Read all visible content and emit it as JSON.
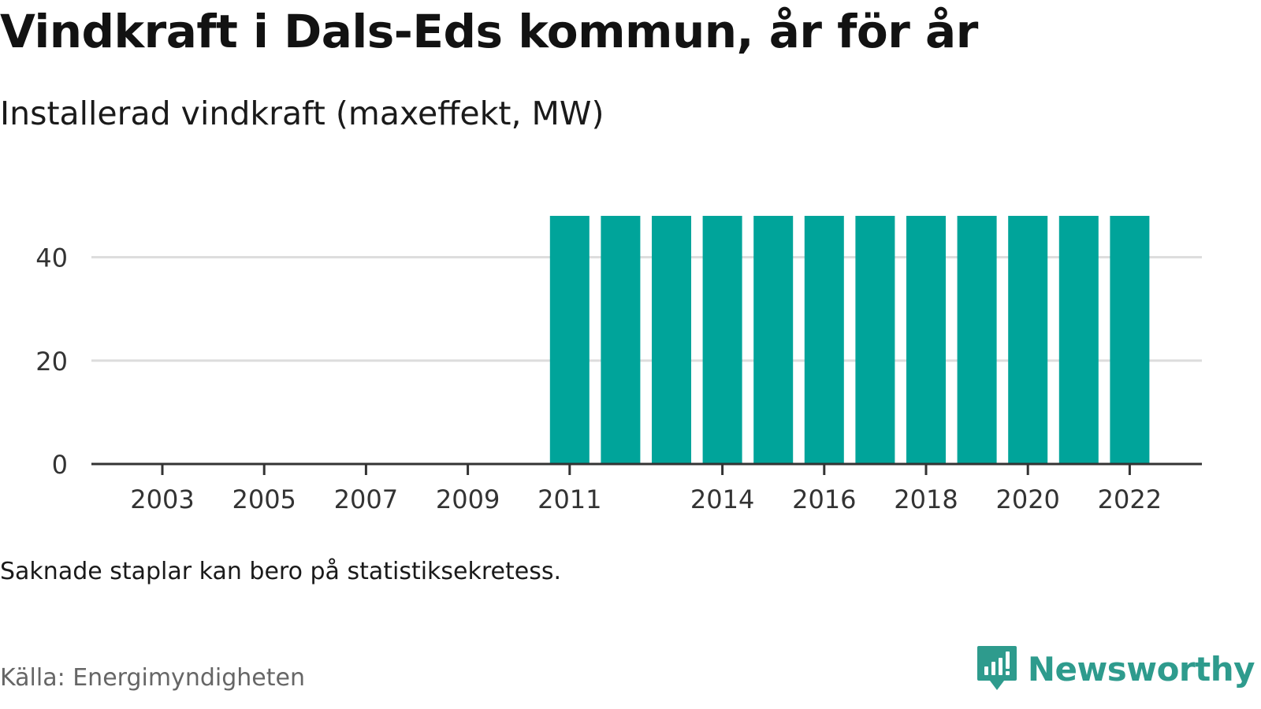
{
  "header": {
    "title": "Vindkraft i Dals-Eds kommun, år för år",
    "subtitle": "Installerad vindkraft (maxeffekt, MW)"
  },
  "footer": {
    "note": "Saknade staplar kan bero på statistiksekretess.",
    "source": "Källa: Energimyndigheten",
    "brand_name": "Newsworthy"
  },
  "colors": {
    "bar": "#00a49a",
    "brand": "#2e9b8d",
    "grid": "#dddddd",
    "axis": "#333333"
  },
  "chart_data": {
    "type": "bar",
    "title": "Vindkraft i Dals-Eds kommun, år för år",
    "subtitle": "Installerad vindkraft (maxeffekt, MW)",
    "xlabel": "",
    "ylabel": "",
    "categories": [
      2002,
      2003,
      2004,
      2005,
      2006,
      2007,
      2008,
      2009,
      2010,
      2011,
      2012,
      2013,
      2014,
      2015,
      2016,
      2017,
      2018,
      2019,
      2020,
      2021,
      2022
    ],
    "values": [
      null,
      null,
      null,
      null,
      null,
      null,
      null,
      null,
      null,
      48,
      48,
      48,
      48,
      48,
      48,
      48,
      48,
      48,
      48,
      48,
      48
    ],
    "x_tick_labels": [
      "2003",
      "2005",
      "2007",
      "2009",
      "2011",
      "2014",
      "2016",
      "2018",
      "2020",
      "2022"
    ],
    "y_ticks": [
      0,
      20,
      40
    ],
    "ylim": [
      0,
      48
    ],
    "grid": true,
    "legend": "none"
  }
}
